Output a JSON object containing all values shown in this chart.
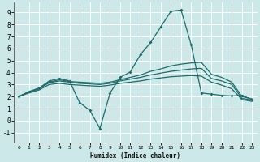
{
  "xlabel": "Humidex (Indice chaleur)",
  "bg_color": "#cce8e8",
  "grid_color": "#ffffff",
  "line_color": "#1e6b6b",
  "xlim": [
    -0.5,
    23.5
  ],
  "ylim": [
    -1.8,
    9.8
  ],
  "xticks": [
    0,
    1,
    2,
    3,
    4,
    5,
    6,
    7,
    8,
    9,
    10,
    11,
    12,
    13,
    14,
    15,
    16,
    17,
    18,
    19,
    20,
    21,
    22,
    23
  ],
  "yticks": [
    -1,
    0,
    1,
    2,
    3,
    4,
    5,
    6,
    7,
    8,
    9
  ],
  "line1_x": [
    0,
    1,
    2,
    3,
    4,
    5,
    6,
    7,
    8,
    9,
    10,
    11,
    12,
    13,
    14,
    15,
    16,
    17,
    18,
    19,
    20,
    21,
    22,
    23
  ],
  "line1_y": [
    2.0,
    2.4,
    2.7,
    3.3,
    3.5,
    3.3,
    1.5,
    0.85,
    -0.65,
    2.3,
    3.6,
    4.05,
    5.5,
    6.5,
    7.8,
    9.1,
    9.2,
    6.3,
    2.3,
    2.2,
    2.1,
    2.05,
    2.1,
    1.75
  ],
  "line2_x": [
    0,
    1,
    2,
    3,
    4,
    5,
    6,
    7,
    8,
    9,
    10,
    11,
    12,
    13,
    14,
    15,
    16,
    17,
    18,
    19,
    20,
    21,
    22,
    23
  ],
  "line2_y": [
    2.0,
    2.4,
    2.7,
    3.2,
    3.4,
    3.25,
    3.2,
    3.15,
    3.1,
    3.2,
    3.4,
    3.6,
    3.8,
    4.1,
    4.3,
    4.55,
    4.7,
    4.8,
    4.85,
    3.85,
    3.6,
    3.2,
    2.0,
    1.8
  ],
  "line3_x": [
    0,
    1,
    2,
    3,
    4,
    5,
    6,
    7,
    8,
    9,
    10,
    11,
    12,
    13,
    14,
    15,
    16,
    17,
    18,
    19,
    20,
    21,
    22,
    23
  ],
  "line3_y": [
    2.0,
    2.35,
    2.65,
    3.15,
    3.3,
    3.2,
    3.1,
    3.05,
    3.0,
    3.1,
    3.3,
    3.45,
    3.6,
    3.8,
    3.95,
    4.1,
    4.2,
    4.3,
    4.35,
    3.5,
    3.3,
    3.0,
    1.85,
    1.7
  ],
  "line4_x": [
    0,
    1,
    2,
    3,
    4,
    5,
    6,
    7,
    8,
    9,
    10,
    11,
    12,
    13,
    14,
    15,
    16,
    17,
    18,
    19,
    20,
    21,
    22,
    23
  ],
  "line4_y": [
    2.0,
    2.3,
    2.55,
    3.0,
    3.1,
    3.0,
    2.95,
    2.9,
    2.85,
    2.95,
    3.1,
    3.2,
    3.3,
    3.45,
    3.55,
    3.65,
    3.7,
    3.75,
    3.7,
    3.2,
    2.95,
    2.65,
    1.75,
    1.6
  ]
}
